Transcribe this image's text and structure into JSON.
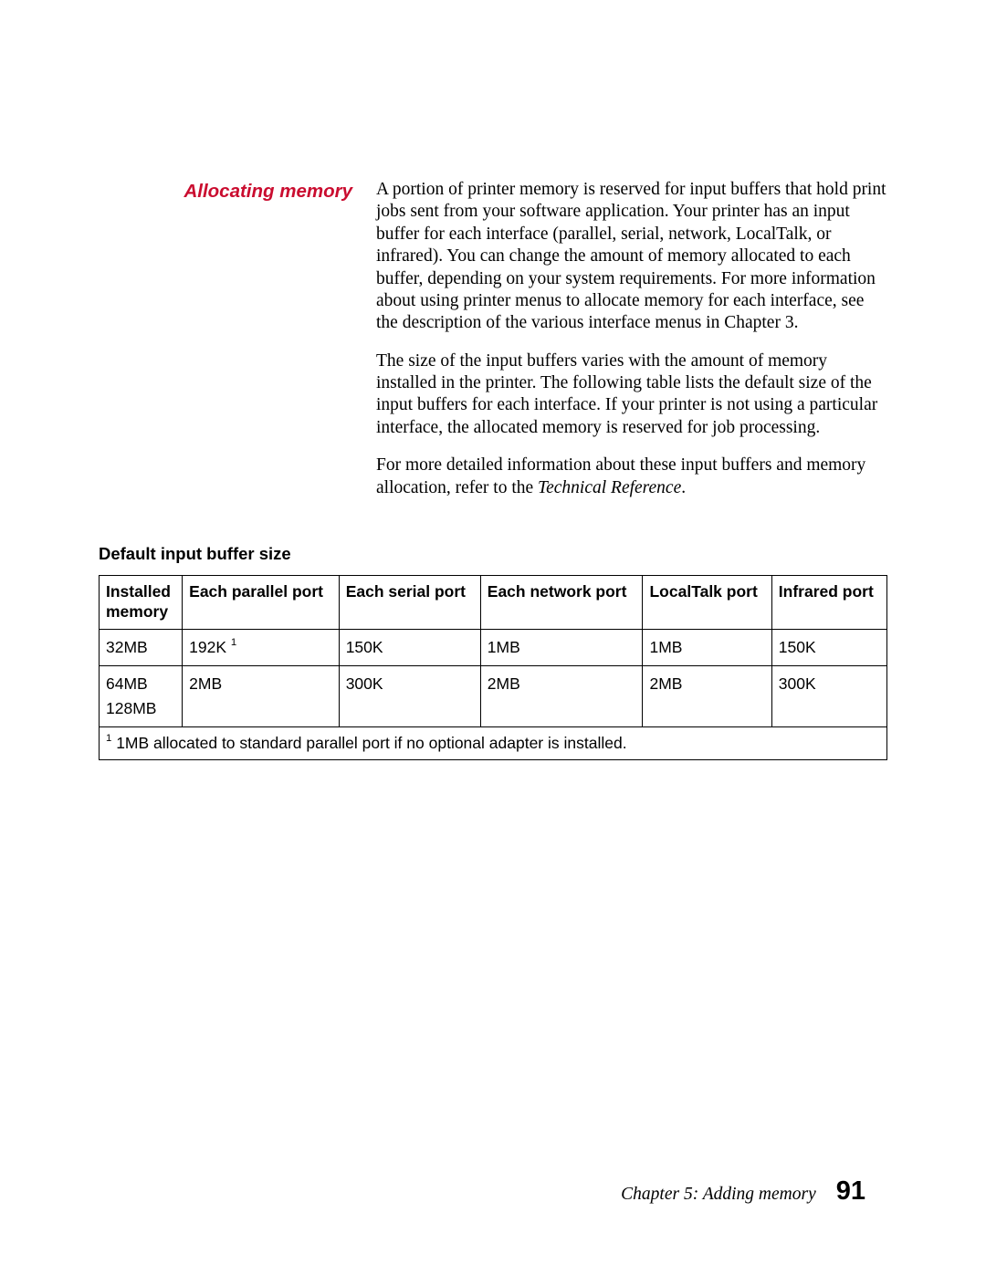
{
  "heading": "Allocating memory",
  "paragraphs": {
    "p1": "A portion of printer memory is reserved for input buffers that hold print jobs sent from your software application. Your printer has an input buffer for each interface (parallel, serial, network, LocalTalk, or infrared). You can change the amount of memory allocated to each buffer, depending on your system requirements. For more information about using printer menus to allocate memory for each interface, see the description of the various interface menus in Chapter 3.",
    "p2": "The size of the input buffers varies with the amount of memory installed in the printer. The following table lists the default size of the input buffers for each interface. If your printer is not using a particular interface, the allocated memory is reserved for job processing.",
    "p3_a": "For more detailed information about these input buffers and memory allocation, refer to the ",
    "p3_italic": "Technical Reference",
    "p3_b": "."
  },
  "table_title": "Default input buffer size",
  "table": {
    "headers": {
      "h0a": "Installed",
      "h0b": "memory",
      "h1": "Each parallel port",
      "h2": "Each serial port",
      "h3": "Each network port",
      "h4": "LocalTalk port",
      "h5": "Infrared port"
    },
    "row1": {
      "c0": "32MB",
      "c1": "192K ",
      "c1_sup": "1",
      "c2": "150K",
      "c3": "1MB",
      "c4": "1MB",
      "c5": "150K"
    },
    "row2": {
      "c0a": "64MB",
      "c0b": "128MB",
      "c1": "2MB",
      "c2": "300K",
      "c3": "2MB",
      "c4": "2MB",
      "c5": "300K"
    },
    "footnote_sup": "1",
    "footnote_text": " 1MB allocated to standard parallel port if no optional adapter is installed."
  },
  "footer": {
    "chapter": "Chapter 5: Adding memory",
    "page": "91"
  }
}
